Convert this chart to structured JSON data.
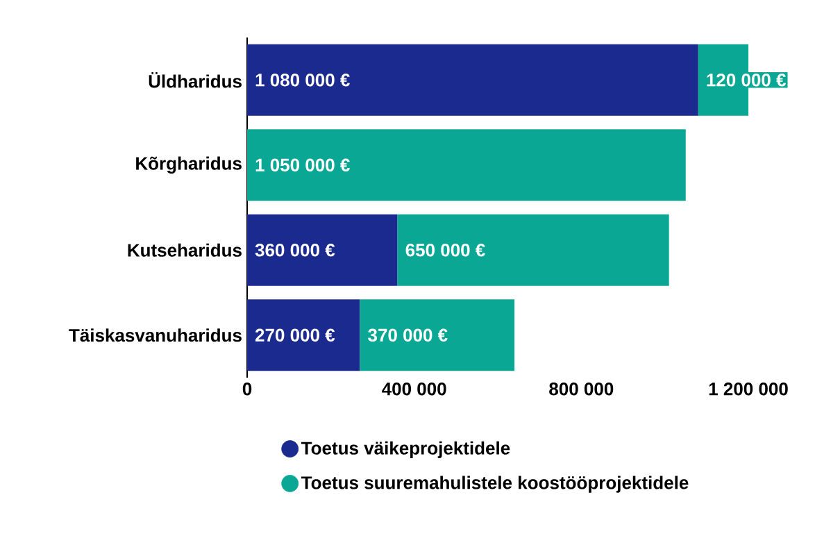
{
  "chart_data": {
    "type": "bar",
    "orientation": "horizontal",
    "stacked": true,
    "categories": [
      "Üldharidus",
      "Kõrgharidus",
      "Kutseharidus",
      "Täiskasvanuharidus"
    ],
    "series": [
      {
        "name": "Toetus väikeprojektidele",
        "color": "#1b2a8f",
        "values": [
          1080000,
          null,
          360000,
          270000
        ],
        "value_labels": [
          "1 080 000 €",
          null,
          "360 000 €",
          "270 000 €"
        ]
      },
      {
        "name": "Toetus suuremahulistele koostööprojektidele",
        "color": "#0aa894",
        "values": [
          120000,
          1050000,
          650000,
          370000
        ],
        "value_labels": [
          "120 000 €",
          "1 050 000 €",
          "650 000 €",
          "370 000 €"
        ]
      }
    ],
    "xlim": [
      0,
      1200000
    ],
    "xticks": [
      0,
      {
        "value": 400000,
        "label": "400 000"
      },
      {
        "value": 800000,
        "label": "800 000"
      },
      {
        "value": 1200000,
        "label": "1 200 000"
      }
    ],
    "grid": false,
    "legend": "bottom",
    "marker": "circle"
  }
}
